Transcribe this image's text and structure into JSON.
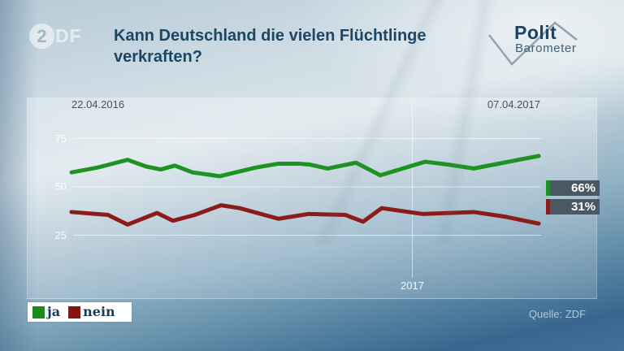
{
  "brand": {
    "circle_char": "2",
    "rest": "DF"
  },
  "title": {
    "line1": "Kann Deutschland die vielen Flüchtlinge",
    "line2": "verkraften?"
  },
  "polit_logo": {
    "line1": "Polit",
    "line2": "Barometer"
  },
  "source": "Quelle: ZDF",
  "chart_data": {
    "type": "line",
    "title": "Kann Deutschland die vielen Flüchtlinge verkraften?",
    "x_start_label": "22.04.2016",
    "x_end_label": "07.04.2017",
    "x_mid_gridline_label": "2017",
    "y_ticks": [
      75,
      50,
      25
    ],
    "ylim": [
      0,
      100
    ],
    "grid": true,
    "legend_position": "bottom-left",
    "series": [
      {
        "name": "ja",
        "color": "#1e9222",
        "swatch_color": "#1e8a1e",
        "end_value_label": "66%",
        "points": [
          {
            "t": 0.0,
            "v": 57.5
          },
          {
            "t": 0.056,
            "v": 60.0
          },
          {
            "t": 0.12,
            "v": 64.0
          },
          {
            "t": 0.16,
            "v": 60.5
          },
          {
            "t": 0.191,
            "v": 59.0
          },
          {
            "t": 0.221,
            "v": 61.0
          },
          {
            "t": 0.259,
            "v": 57.5
          },
          {
            "t": 0.317,
            "v": 55.5
          },
          {
            "t": 0.36,
            "v": 58.0
          },
          {
            "t": 0.395,
            "v": 60.0
          },
          {
            "t": 0.443,
            "v": 62.0
          },
          {
            "t": 0.487,
            "v": 62.0
          },
          {
            "t": 0.511,
            "v": 61.5
          },
          {
            "t": 0.548,
            "v": 59.5
          },
          {
            "t": 0.609,
            "v": 62.5
          },
          {
            "t": 0.661,
            "v": 56.0
          },
          {
            "t": 0.757,
            "v": 63.0
          },
          {
            "t": 0.807,
            "v": 61.5
          },
          {
            "t": 0.861,
            "v": 59.5
          },
          {
            "t": 0.925,
            "v": 62.5
          },
          {
            "t": 1.0,
            "v": 66.0
          }
        ]
      },
      {
        "name": "nein",
        "color": "#8c1b1b",
        "swatch_color": "#871414",
        "end_value_label": "31%",
        "points": [
          {
            "t": 0.0,
            "v": 37.0
          },
          {
            "t": 0.078,
            "v": 35.5
          },
          {
            "t": 0.12,
            "v": 30.5
          },
          {
            "t": 0.183,
            "v": 36.5
          },
          {
            "t": 0.217,
            "v": 32.5
          },
          {
            "t": 0.264,
            "v": 35.5
          },
          {
            "t": 0.32,
            "v": 40.5
          },
          {
            "t": 0.36,
            "v": 39.0
          },
          {
            "t": 0.443,
            "v": 33.5
          },
          {
            "t": 0.508,
            "v": 36.0
          },
          {
            "t": 0.586,
            "v": 35.5
          },
          {
            "t": 0.624,
            "v": 32.0
          },
          {
            "t": 0.664,
            "v": 39.0
          },
          {
            "t": 0.751,
            "v": 36.0
          },
          {
            "t": 0.861,
            "v": 37.0
          },
          {
            "t": 0.93,
            "v": 34.5
          },
          {
            "t": 1.0,
            "v": 31.0
          }
        ]
      }
    ]
  }
}
